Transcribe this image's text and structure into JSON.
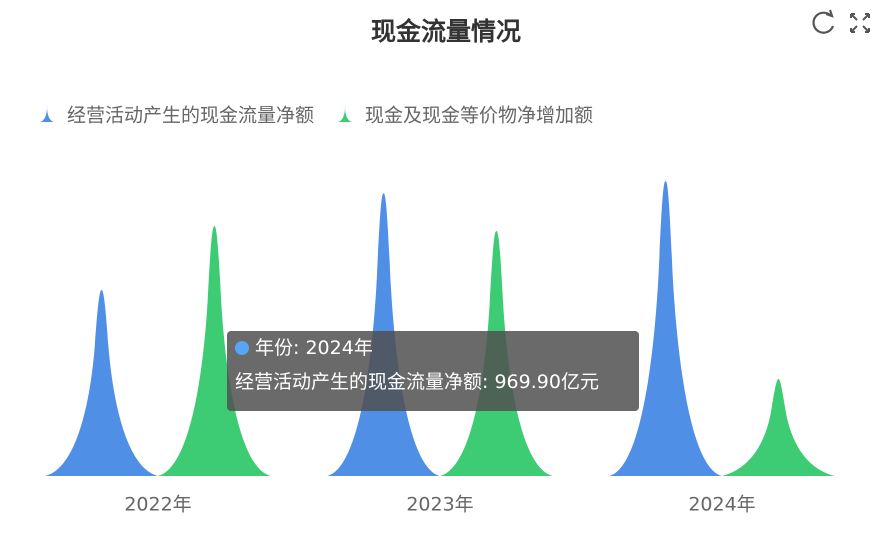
{
  "chart_data": {
    "type": "pictorial-bar",
    "title": "现金流量情况",
    "categories": [
      "2022年",
      "2023年",
      "2024年"
    ],
    "series": [
      {
        "name": "经营活动产生的现金流量净额",
        "color": "#4f8fe6",
        "values": [
          612,
          930,
          969.9
        ]
      },
      {
        "name": "现金及现金等价物净增加额",
        "color": "#3dcc73",
        "values": [
          822,
          806,
          319
        ]
      }
    ],
    "ylim": [
      0,
      1000
    ],
    "tooltip": {
      "x_name": "年份",
      "value_label": "969.90亿元"
    }
  }
}
